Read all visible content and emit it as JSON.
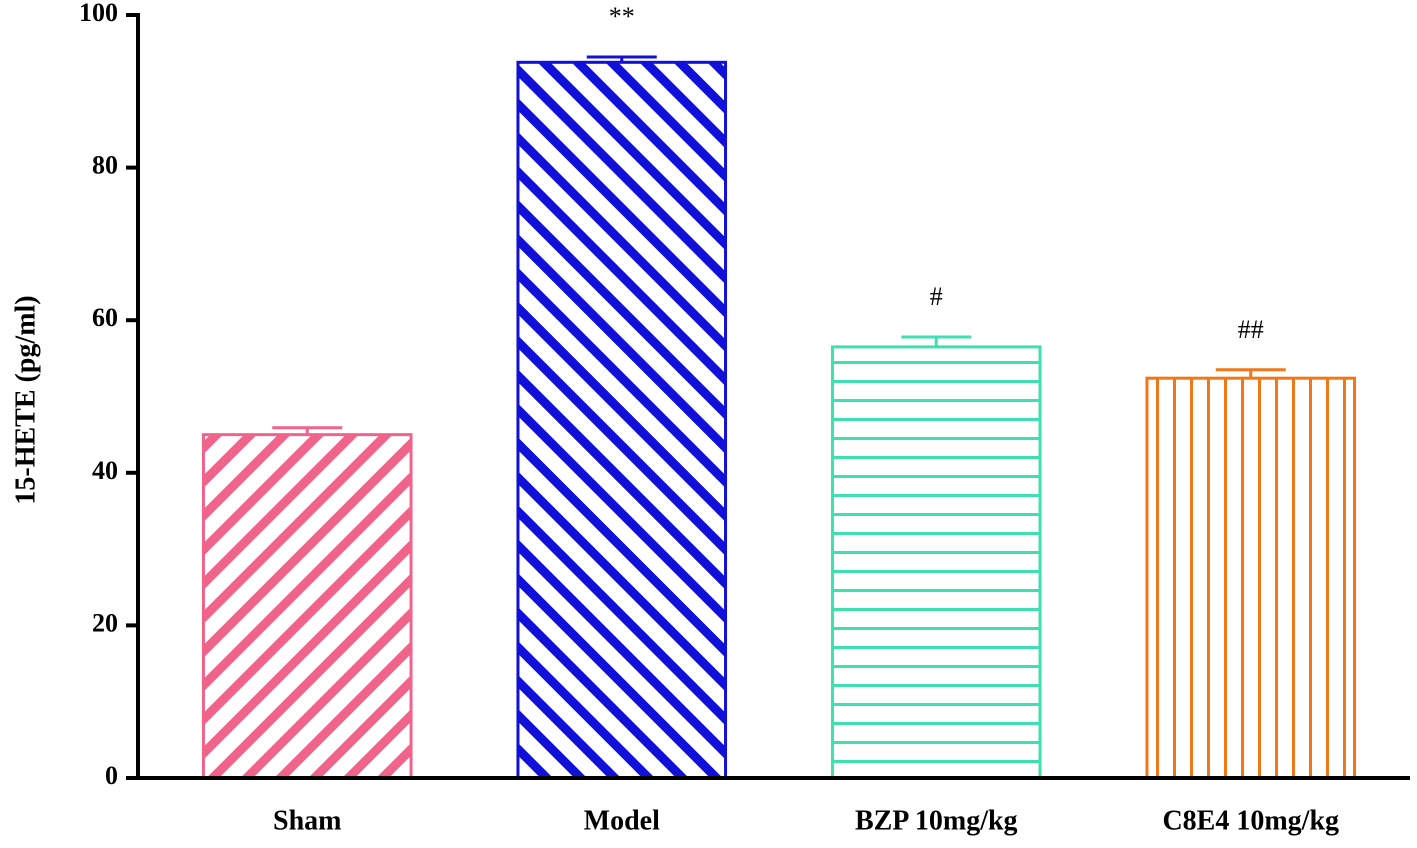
{
  "chart_data": {
    "type": "bar",
    "y_label": "15-HETE (pg/ml)",
    "categories": [
      "Sham",
      "Model",
      "BZP 10mg/kg",
      "C8E4 10mg/kg"
    ],
    "values": [
      45.0,
      93.8,
      56.5,
      52.4
    ],
    "errors": [
      0.9,
      0.7,
      1.3,
      1.1
    ],
    "annotations": [
      null,
      "**",
      "#",
      "##"
    ],
    "colors": [
      "#f0648c",
      "#1010d8",
      "#3ee0b0",
      "#f07818"
    ],
    "hatches": [
      "slash",
      "backslash",
      "horizontal",
      "vertical"
    ],
    "ylim": [
      0,
      100
    ],
    "yticks": [
      0,
      20,
      40,
      60,
      80,
      100
    ]
  }
}
